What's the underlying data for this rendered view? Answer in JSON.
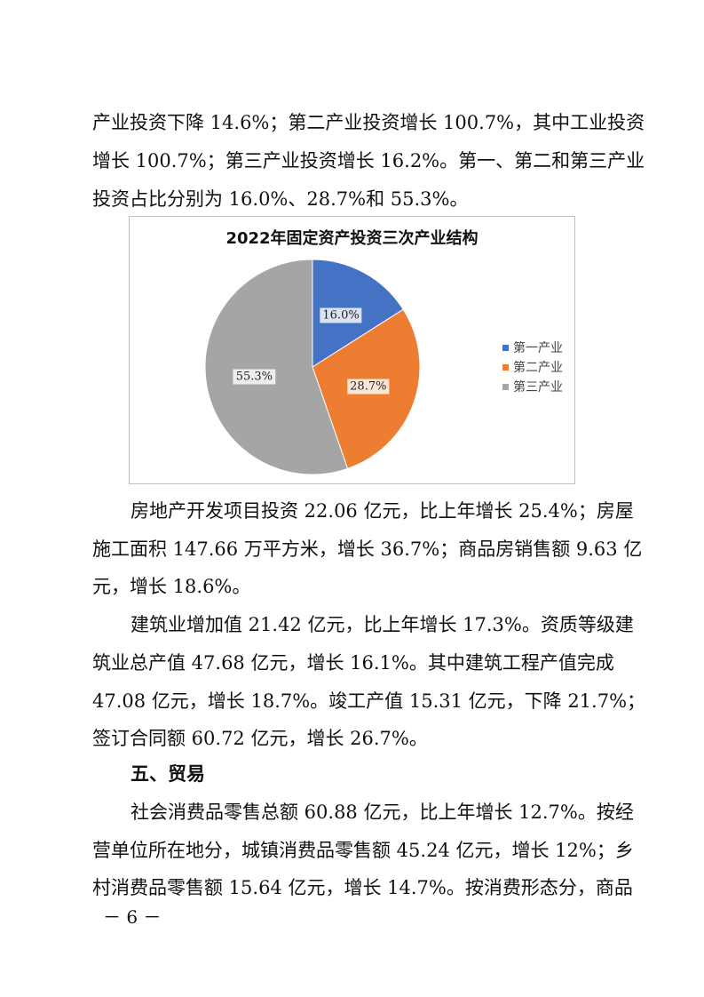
{
  "para_top": [
    "产业投资下降 14.6%；第二产业投资增长 100.7%，其中工业投资",
    "增长 100.7%；第三产业投资增长 16.2%。第一、第二和第三产业",
    "投资占比分别为 16.0%、28.7%和 55.3%。"
  ],
  "chart_data": {
    "type": "pie",
    "title": "2022年固定资产投资三次产业结构",
    "categories": [
      "第一产业",
      "第二产业",
      "第三产业"
    ],
    "values": [
      16.0,
      28.7,
      55.3
    ],
    "data_labels": [
      "16.0%",
      "28.7%",
      "55.3%"
    ],
    "colors": [
      "#4472C4",
      "#ED7D31",
      "#A5A5A5"
    ],
    "label_bg": [
      "#DAE3F3",
      "#FBE5D6",
      "#EDEDED"
    ],
    "legend_position": "right"
  },
  "para_realestate": [
    "房地产开发项目投资 22.06 亿元，比上年增长 25.4%；房屋",
    "施工面积 147.66 万平方米，增长 36.7%；商品房销售额 9.63 亿",
    "元，增长 18.6%。"
  ],
  "para_construction": [
    "建筑业增加值 21.42 亿元，比上年增长 17.3%。资质等级建",
    "筑业总产值 47.68 亿元，增长 16.1%。其中建筑工程产值完成",
    "47.08 亿元，增长 18.7%。竣工产值 15.31 亿元，下降 21.7%；",
    "签订合同额 60.72 亿元，增长 26.7%。"
  ],
  "heading_trade": "五、贸易",
  "para_trade": [
    "社会消费品零售总额 60.88 亿元，比上年增长 12.7%。按经",
    "营单位所在地分，城镇消费品零售额 45.24 亿元，增长 12%；乡",
    "村消费品零售额 15.64 亿元，增长 14.7%。按消费形态分，商品"
  ],
  "page_number": "－ 6 －"
}
